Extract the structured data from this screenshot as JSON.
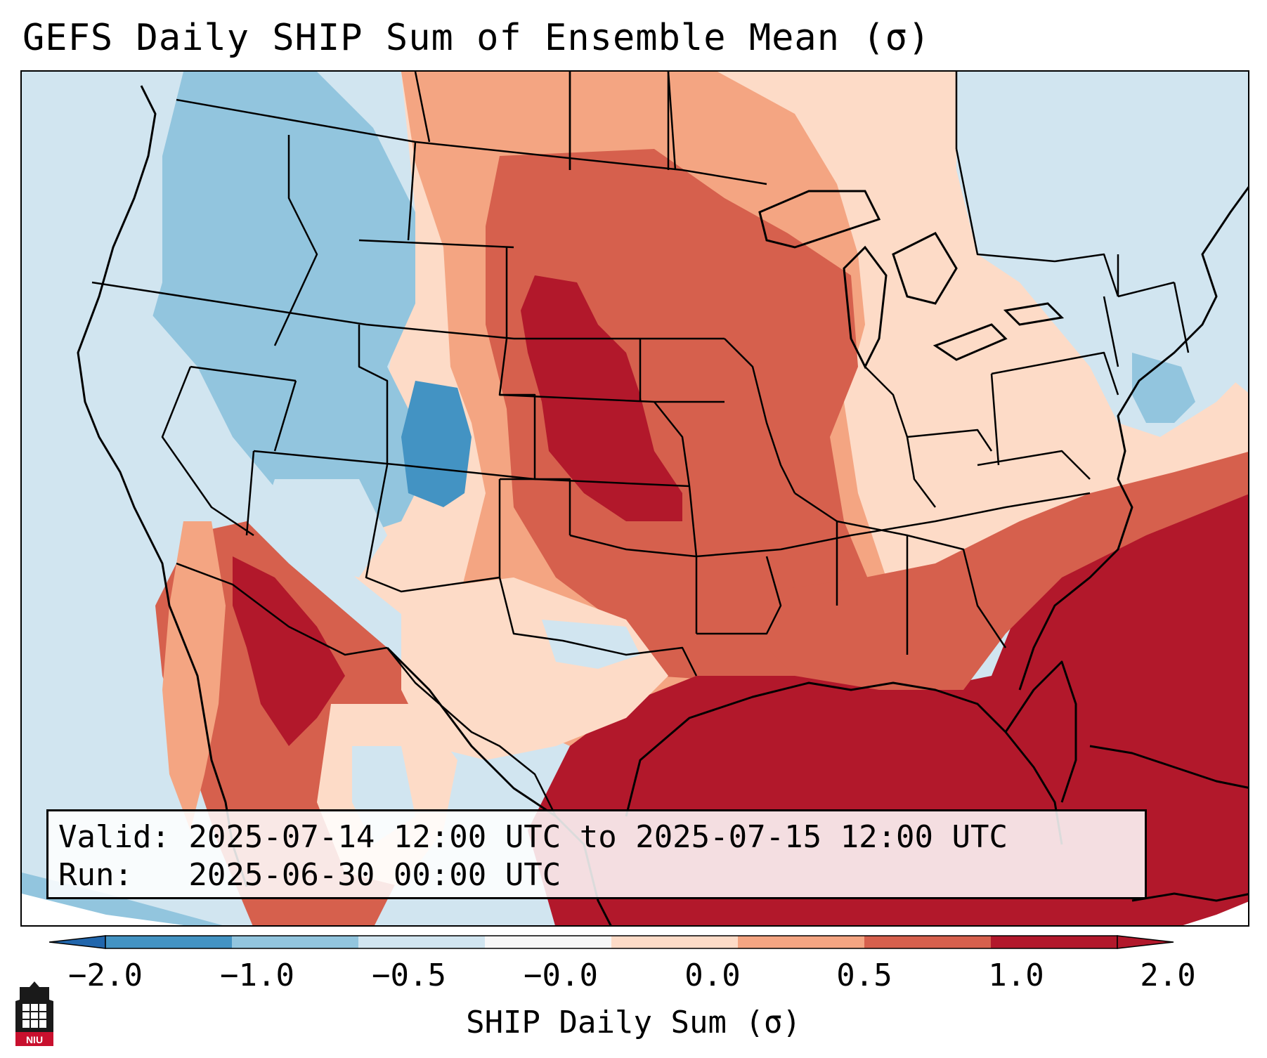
{
  "header": {
    "title": "GEFS Daily SHIP Sum of Ensemble Mean (σ)"
  },
  "info": {
    "valid_line": "Valid: 2025-07-14 12:00 UTC to 2025-07-15 12:00 UTC",
    "run_line": "Run:   2025-06-30 00:00 UTC"
  },
  "colorbar": {
    "label": "SHIP Daily Sum (σ)",
    "ticks": [
      "−2.0",
      "−1.0",
      "−0.5",
      "−0.0",
      "0.0",
      "0.5",
      "1.0",
      "2.0"
    ],
    "colors": [
      "#4393c3",
      "#92c5de",
      "#d1e5f0",
      "#f7f7f7",
      "#fddbc7",
      "#f4a582",
      "#d6604d",
      "#b2182b"
    ],
    "extend_colors": {
      "low": "#2166ac",
      "high": "#b2182b"
    }
  },
  "map": {
    "variable": "SHIP Daily Sum",
    "units": "σ",
    "region": "Contiguous United States"
  },
  "logo": {
    "text": "NIU"
  }
}
